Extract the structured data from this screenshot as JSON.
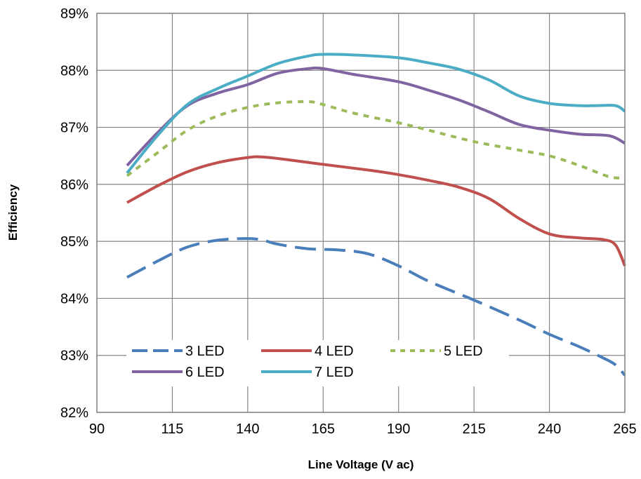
{
  "chart_data": {
    "type": "line",
    "title": "",
    "xlabel": "Line Voltage (V ac)",
    "ylabel": "Efficiency",
    "xlim": [
      90,
      265
    ],
    "ylim": [
      82,
      89
    ],
    "x_ticks": [
      "90",
      "115",
      "140",
      "165",
      "190",
      "215",
      "240",
      "265"
    ],
    "y_ticks": [
      "82%",
      "83%",
      "84%",
      "85%",
      "86%",
      "87%",
      "88%",
      "89%"
    ],
    "grid": true,
    "legend_position": "inside-bottom-left",
    "series": [
      {
        "name": "3 LED",
        "color": "#4a7ebb",
        "style": "dashed",
        "x": [
          100,
          110,
          120,
          130,
          140,
          145,
          150,
          160,
          170,
          180,
          190,
          200,
          215,
          230,
          240,
          250,
          258,
          262,
          265
        ],
        "y": [
          84.37,
          84.65,
          84.9,
          85.02,
          85.05,
          85.02,
          84.95,
          84.87,
          84.85,
          84.78,
          84.57,
          84.3,
          83.97,
          83.62,
          83.37,
          83.15,
          82.95,
          82.83,
          82.65
        ]
      },
      {
        "name": "4 LED",
        "color": "#c0504d",
        "style": "solid",
        "x": [
          100,
          110,
          120,
          130,
          140,
          145,
          155,
          165,
          180,
          190,
          200,
          210,
          220,
          230,
          240,
          250,
          258,
          262,
          265
        ],
        "y": [
          85.68,
          85.97,
          86.22,
          86.38,
          86.47,
          86.48,
          86.42,
          86.35,
          86.25,
          86.17,
          86.07,
          85.95,
          85.75,
          85.4,
          85.13,
          85.06,
          85.03,
          84.93,
          84.57
        ]
      },
      {
        "name": "5 LED",
        "color": "#9bbb59",
        "style": "dotted",
        "x": [
          100,
          110,
          120,
          130,
          140,
          150,
          160,
          165,
          175,
          190,
          200,
          215,
          230,
          240,
          250,
          260,
          265
        ],
        "y": [
          86.15,
          86.55,
          86.95,
          87.2,
          87.35,
          87.43,
          87.45,
          87.4,
          87.25,
          87.08,
          86.95,
          86.75,
          86.6,
          86.5,
          86.33,
          86.13,
          86.12
        ]
      },
      {
        "name": "6 LED",
        "color": "#8064a2",
        "style": "solid",
        "x": [
          100,
          110,
          120,
          130,
          140,
          150,
          160,
          165,
          175,
          190,
          200,
          210,
          220,
          230,
          240,
          250,
          260,
          265
        ],
        "y": [
          86.33,
          86.9,
          87.38,
          87.6,
          87.75,
          87.95,
          88.03,
          88.03,
          87.93,
          87.8,
          87.65,
          87.48,
          87.27,
          87.05,
          86.95,
          86.88,
          86.85,
          86.72
        ]
      },
      {
        "name": "7 LED",
        "color": "#4bacc6",
        "style": "solid",
        "x": [
          100,
          110,
          120,
          130,
          140,
          150,
          160,
          165,
          175,
          190,
          200,
          210,
          220,
          230,
          240,
          250,
          255,
          262,
          265
        ],
        "y": [
          86.2,
          86.85,
          87.4,
          87.68,
          87.9,
          88.12,
          88.25,
          88.28,
          88.27,
          88.22,
          88.13,
          88.02,
          87.83,
          87.55,
          87.42,
          87.38,
          87.38,
          87.38,
          87.28
        ]
      }
    ]
  }
}
